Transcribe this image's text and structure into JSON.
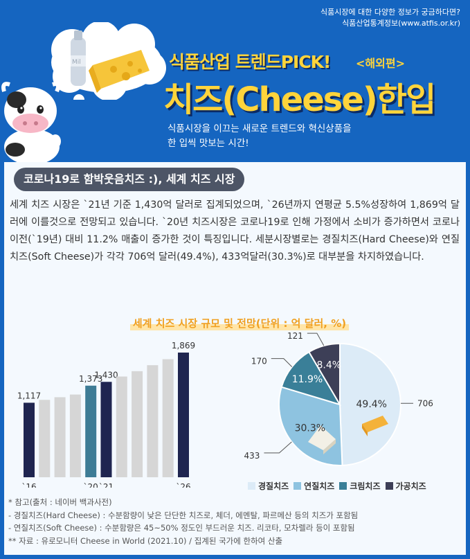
{
  "header": {
    "source_line1": "식품시장에 대한 다양한 정보가 궁금하다면?",
    "source_line2": "식품산업통계정보(www.atfis.or.kr)",
    "kicker": "식품산업 트렌드PICK!",
    "kicker_tag": "<해외편>",
    "title": "치즈(Cheese)한입",
    "subtitle_line1": "식품시장을 이끄는 새로운 트렌드와 혁신상품을",
    "subtitle_line2": "한 입씩 맛보는 시간!",
    "milk_label": "Mil"
  },
  "section": {
    "heading": "코로나19로 함박웃음치즈 :), 세계 치즈 시장",
    "paragraph": "세계 치즈 시장은 `21년 기준 1,430억 달러로 집계되었으며, `26년까지 연평균 5.5%성장하여 1,869억 달러에 이를것으로 전망되고 있습니다. `20년 치즈시장은 코로나19로 인해 가정에서 소비가 증가하면서 코로나 이전(`19년) 대비 11.2% 매출이 증가한 것이 특징입니다. 세분시장별로는 경질치즈(Hard Cheese)와 연질치즈(Soft Cheese)가 각각 706억 달러(49.4%), 433억달러(30.3%)로 대부분을 차지하였습니다."
  },
  "chart_title": "세계 치즈 시장 규모 및 전망(단위 : 억 달러, %)",
  "chart_data": [
    {
      "type": "bar",
      "categories": [
        "`16",
        "`17",
        "`18",
        "`19",
        "`20",
        "`21",
        "`22",
        "`23",
        "`24",
        "`25",
        "`26"
      ],
      "tick_labels": [
        "`16",
        "",
        "",
        "",
        "`20",
        "`21",
        "",
        "",
        "",
        "",
        "`26"
      ],
      "values": [
        1117,
        1160,
        1200,
        1240,
        1373,
        1430,
        1510,
        1590,
        1680,
        1770,
        1869
      ],
      "data_labels": [
        "1,117",
        "",
        "",
        "",
        "1,373",
        "1,430",
        "",
        "",
        "",
        "",
        "1,869"
      ],
      "colors": [
        "#1f2550",
        "#d6d6d6",
        "#d6d6d6",
        "#d6d6d6",
        "#3e7c95",
        "#1f2550",
        "#d6d6d6",
        "#d6d6d6",
        "#d6d6d6",
        "#d6d6d6",
        "#1f2550"
      ],
      "ylim": [
        0,
        1900
      ],
      "grid": false
    },
    {
      "type": "pie",
      "labels": [
        "경질치즈",
        "연질치즈",
        "크림치즈",
        "가공치즈"
      ],
      "values": [
        706,
        433,
        170,
        121
      ],
      "percent_labels": [
        "49.4%",
        "30.3%",
        "11.9%",
        "8.4%"
      ],
      "value_labels": [
        "706",
        "433",
        "170",
        "121"
      ],
      "colors": [
        "#dcebf7",
        "#8ec3e0",
        "#3a7f98",
        "#3d3f57"
      ],
      "legend_position": "bottom"
    }
  ],
  "notes": {
    "line1": "* 참고(출처 : 네이버 백과사전)",
    "line2": "- 경질치즈(Hard Cheese) : 수분함량이 낮은 단단한 치즈로, 체더, 에멘탈, 파르메산 등의 치즈가 포함됨",
    "line3": "- 연질치즈(Soft  Cheese) : 수분함량은 45~50% 정도인 부드러운 치즈. 리코타, 모차렐라 등이 포함됨",
    "line4": "** 자료 : 유로모니터 Cheese in World (2021.10) / 집계된 국가에 한하여 산출"
  }
}
